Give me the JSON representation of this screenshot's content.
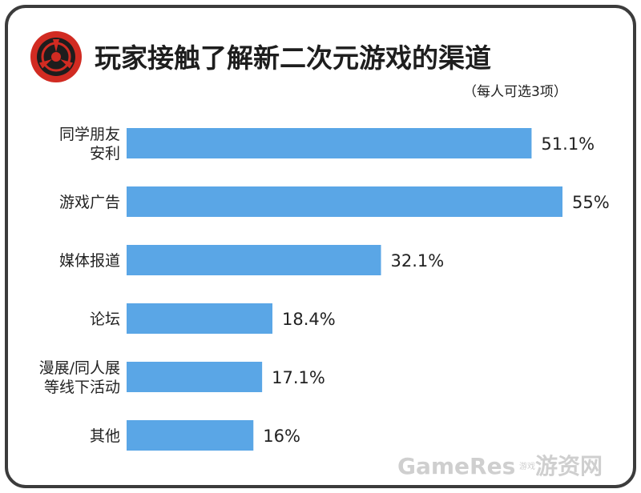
{
  "chart_data": {
    "type": "bar",
    "orientation": "horizontal",
    "title": "玩家接触了解新二次元游戏的渠道",
    "subtitle": "（每人可选3项）",
    "categories": [
      [
        "同学朋友",
        "安利"
      ],
      [
        "游戏广告"
      ],
      [
        "媒体报道"
      ],
      [
        "论坛"
      ],
      [
        "漫展/同人展",
        "等线下活动"
      ],
      [
        "其他"
      ]
    ],
    "values": [
      51.1,
      55,
      32.1,
      18.4,
      17.1,
      16
    ],
    "value_labels": [
      "51.1%",
      "55%",
      "32.1%",
      "18.4%",
      "17.1%",
      "16%"
    ],
    "xlim": [
      0,
      55
    ],
    "grid": false,
    "bar_color": "#5aa6e6"
  },
  "logo": {
    "ring_color": "#d12b22",
    "inner_color": "#1d1d1d",
    "icon": "tomoe-emblem-icon"
  },
  "watermark": {
    "brand": "GameRes",
    "small": "游戏",
    "cn": "游资网"
  }
}
